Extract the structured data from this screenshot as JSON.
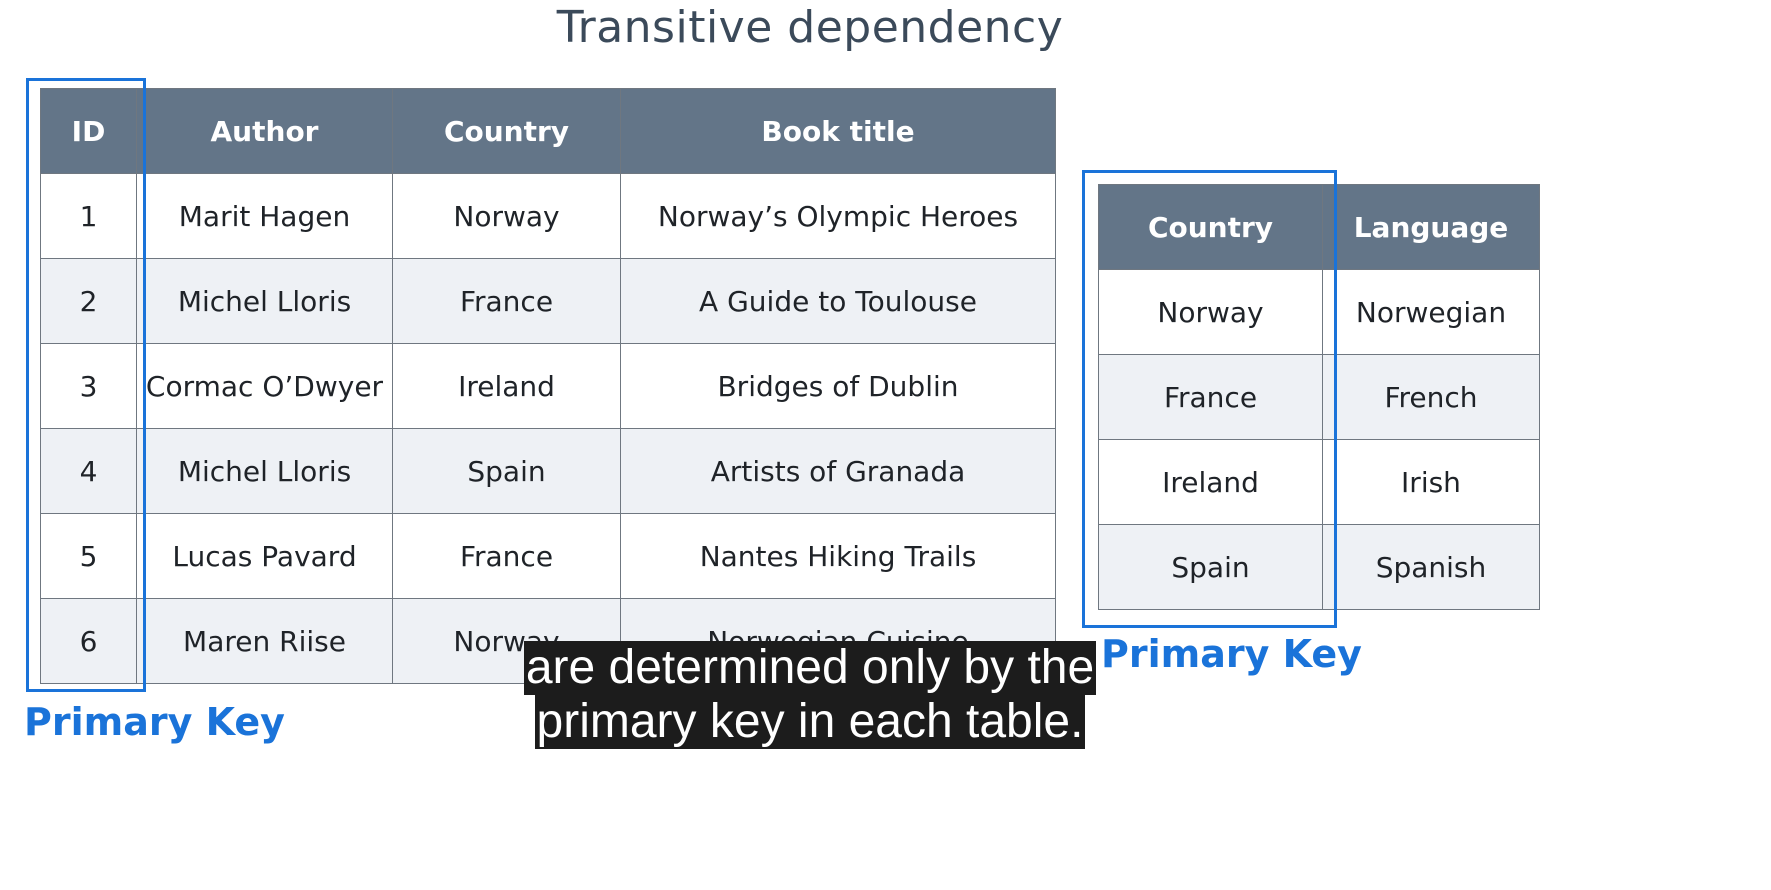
{
  "slide": {
    "title": "Transitive dependency"
  },
  "books_table": {
    "headers": [
      "ID",
      "Author",
      "Country",
      "Book title"
    ],
    "rows": [
      [
        "1",
        "Marit Hagen",
        "Norway",
        "Norway’s Olympic Heroes"
      ],
      [
        "2",
        "Michel Lloris",
        "France",
        "A Guide to Toulouse"
      ],
      [
        "3",
        "Cormac O’Dwyer",
        "Ireland",
        "Bridges of Dublin"
      ],
      [
        "4",
        "Michel Lloris",
        "Spain",
        "Artists of Granada"
      ],
      [
        "5",
        "Lucas Pavard",
        "France",
        "Nantes Hiking Trails"
      ],
      [
        "6",
        "Maren Riise",
        "Norway",
        "Norwegian Cuisine"
      ]
    ],
    "primary_key_label": "Primary Key"
  },
  "languages_table": {
    "headers": [
      "Country",
      "Language"
    ],
    "rows": [
      [
        "Norway",
        "Norwegian"
      ],
      [
        "France",
        "French"
      ],
      [
        "Ireland",
        "Irish"
      ],
      [
        "Spain",
        "Spanish"
      ]
    ],
    "primary_key_label": "Primary Key"
  },
  "caption": {
    "line1": "are determined only by the",
    "line2": "primary key in each table."
  },
  "colors": {
    "header_bg": "#637588",
    "stripe_bg": "#eef1f5",
    "primary_key_accent": "#1a73d9",
    "title_text": "#3b4a5a"
  }
}
